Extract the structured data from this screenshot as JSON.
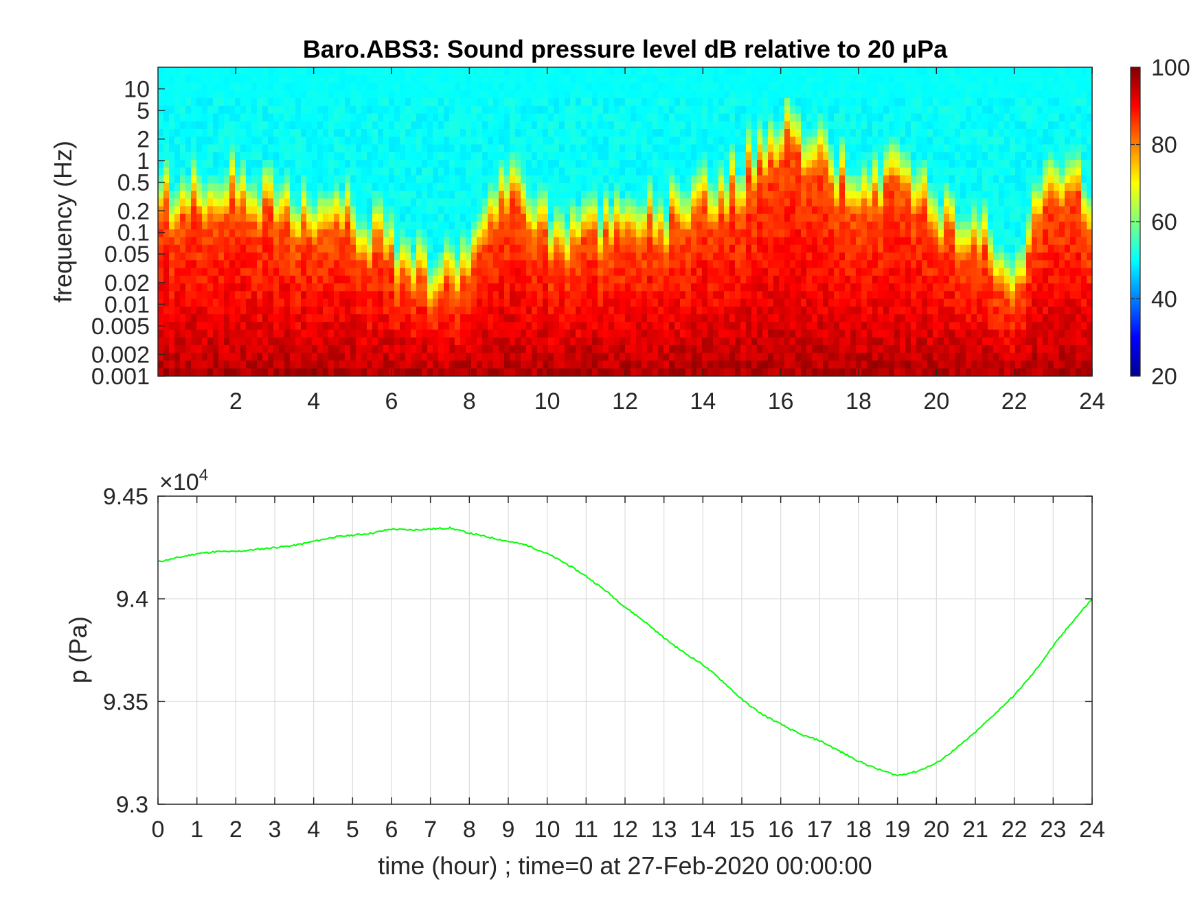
{
  "chart_data": [
    {
      "type": "heatmap",
      "title": "Baro.ABS3: Sound pressure level dB relative to 20 μPa",
      "xlabel": "",
      "ylabel": "frequency (Hz)",
      "xlim": [
        0,
        24
      ],
      "x_ticks": [
        2,
        4,
        6,
        8,
        10,
        12,
        14,
        16,
        18,
        20,
        22,
        24
      ],
      "y_scale": "log",
      "ylim": [
        0.001,
        20
      ],
      "y_ticks": [
        0.001,
        0.002,
        0.005,
        0.01,
        0.02,
        0.05,
        0.1,
        0.2,
        0.5,
        1,
        2,
        5,
        10
      ],
      "y_tick_labels": [
        "0.001",
        "0.002",
        "0.005",
        "0.01",
        "0.02",
        "0.05",
        "0.1",
        "0.2",
        "0.5",
        "1",
        "2",
        "5",
        "10"
      ],
      "colorbar": {
        "range": [
          20,
          100
        ],
        "ticks": [
          20,
          40,
          60,
          80,
          100
        ],
        "colormap": "jet",
        "position": "right"
      },
      "grid": false,
      "quiet_band_freq_hz_by_hour": {
        "hours": [
          0,
          1,
          2,
          3,
          4,
          5,
          6,
          7,
          8,
          9,
          10,
          11,
          12,
          13,
          14,
          15,
          16,
          17,
          18,
          19,
          20,
          21,
          22,
          23,
          24
        ],
        "freq_hz": [
          0.15,
          0.2,
          0.2,
          0.12,
          0.1,
          0.08,
          0.03,
          0.01,
          0.02,
          0.3,
          0.05,
          0.05,
          0.08,
          0.08,
          0.15,
          0.3,
          1.5,
          0.5,
          0.2,
          0.3,
          0.1,
          0.05,
          0.01,
          0.5,
          0.1
        ]
      }
    },
    {
      "type": "line",
      "title": "",
      "xlabel": "time (hour) ; time=0 at 27-Feb-2020 00:00:00",
      "ylabel": "p (Pa)",
      "y_exponent_label": "×10",
      "y_exponent_power": "4",
      "xlim": [
        0,
        24
      ],
      "ylim": [
        93000,
        94500
      ],
      "x_ticks": [
        0,
        1,
        2,
        3,
        4,
        5,
        6,
        7,
        8,
        9,
        10,
        11,
        12,
        13,
        14,
        15,
        16,
        17,
        18,
        19,
        20,
        21,
        22,
        23,
        24
      ],
      "y_ticks": [
        93000,
        93500,
        94000,
        94500
      ],
      "y_tick_labels": [
        "9.3",
        "9.35",
        "9.4",
        "9.45"
      ],
      "grid": true,
      "series": [
        {
          "color": "#00ff00",
          "x": [
            0,
            0.5,
            1,
            1.5,
            2,
            2.5,
            3,
            3.5,
            4,
            4.5,
            5,
            5.5,
            6,
            6.5,
            7,
            7.5,
            8,
            8.5,
            9,
            9.5,
            10,
            10.5,
            11,
            11.5,
            12,
            12.5,
            13,
            13.5,
            14,
            14.5,
            15,
            15.5,
            16,
            16.5,
            17,
            17.5,
            18,
            18.5,
            19,
            19.5,
            20,
            20.5,
            21,
            21.5,
            22,
            22.5,
            23,
            23.5,
            24
          ],
          "y": [
            94180,
            94200,
            94220,
            94230,
            94230,
            94240,
            94250,
            94260,
            94280,
            94300,
            94310,
            94320,
            94340,
            94335,
            94340,
            94345,
            94320,
            94300,
            94280,
            94260,
            94220,
            94170,
            94110,
            94040,
            93960,
            93890,
            93810,
            93740,
            93680,
            93600,
            93510,
            93440,
            93390,
            93340,
            93310,
            93260,
            93210,
            93170,
            93140,
            93160,
            93200,
            93270,
            93350,
            93440,
            93530,
            93640,
            93770,
            93890,
            94000
          ]
        }
      ]
    }
  ]
}
